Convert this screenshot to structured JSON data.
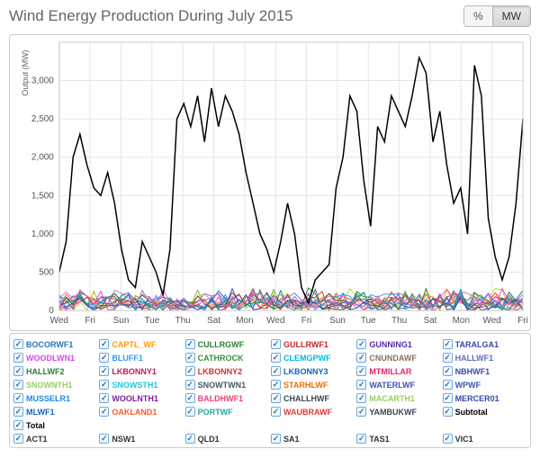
{
  "title": "Wind Energy Production During July 2015",
  "toggle": {
    "percent": "%",
    "mw": "MW",
    "active": "mw"
  },
  "chart": {
    "type": "line",
    "ylabel": "Output (MW)",
    "ylim": [
      0,
      3500
    ],
    "ytick_step": 500,
    "yticks": [
      0,
      500,
      1000,
      1500,
      2000,
      2500,
      3000
    ],
    "xticks": [
      "Wed",
      "Fri",
      "Sun",
      "Tue",
      "Thu",
      "Sat",
      "Mon",
      "Wed",
      "Fri",
      "Sun",
      "Tue",
      "Thu",
      "Sat",
      "Mon",
      "Wed",
      "Fri"
    ],
    "background_color": "#ffffff",
    "grid_color": "#e6e6e6",
    "total_color": "#000000",
    "total_series": [
      500,
      900,
      2000,
      2300,
      1900,
      1600,
      1500,
      1800,
      1400,
      800,
      400,
      300,
      900,
      700,
      500,
      200,
      800,
      2500,
      2700,
      2400,
      2800,
      2200,
      2900,
      2400,
      2800,
      2600,
      2300,
      1800,
      1400,
      1000,
      800,
      500,
      900,
      1400,
      1000,
      300,
      100,
      400,
      500,
      600,
      1600,
      2000,
      2800,
      2600,
      1700,
      1100,
      2400,
      2200,
      2800,
      2600,
      2400,
      2800,
      3300,
      3100,
      2200,
      2600,
      1900,
      1400,
      1600,
      1000,
      3200,
      2800,
      1200,
      700,
      400,
      700,
      1400,
      2500
    ],
    "mini_series_colors": [
      "#7cb342",
      "#cfcf2e",
      "#e377c2",
      "#1f77b4",
      "#ff9800",
      "#2e7d32",
      "#d946ef",
      "#e53935",
      "#3399ff",
      "#795548",
      "#9575cd",
      "#009688",
      "#3f51b5",
      "#f06292"
    ],
    "mini_max": 300
  },
  "legend": {
    "rows": [
      [
        {
          "label": "BOCORWF1",
          "color": "#1f77b4"
        },
        {
          "label": "CAPTL_WF",
          "color": "#ff9800"
        },
        {
          "label": "CULLRGWF",
          "color": "#2e7d32"
        },
        {
          "label": "GULLRWF1",
          "color": "#c62828"
        },
        {
          "label": "GUNNING1",
          "color": "#512da8"
        },
        {
          "label": "TARALGA1",
          "color": "#3949ab"
        }
      ],
      [
        {
          "label": "WOODLWN1",
          "color": "#d946ef"
        },
        {
          "label": "BLUFF1",
          "color": "#3399ff"
        },
        {
          "label": "CATHROCK",
          "color": "#388e3c"
        },
        {
          "label": "CLEMGPWF",
          "color": "#00bcd4"
        },
        {
          "label": "CNUNDAWF",
          "color": "#8d6e63"
        },
        {
          "label": "HALLWF1",
          "color": "#5c6bc0"
        }
      ],
      [
        {
          "label": "HALLWF2",
          "color": "#2e7d32"
        },
        {
          "label": "LKBONNY1",
          "color": "#c2185b"
        },
        {
          "label": "LKBONNY2",
          "color": "#d32f2f"
        },
        {
          "label": "LKBONNY3",
          "color": "#1565c0"
        },
        {
          "label": "MTMILLAR",
          "color": "#e91e63"
        },
        {
          "label": "NBHWF1",
          "color": "#3949ab"
        }
      ],
      [
        {
          "label": "SNOWNTH1",
          "color": "#9ccc65"
        },
        {
          "label": "SNOWSTH1",
          "color": "#26c6da"
        },
        {
          "label": "SNOWTWN1",
          "color": "#455a64"
        },
        {
          "label": "STARHLWF",
          "color": "#ef6c00"
        },
        {
          "label": "WATERLWF",
          "color": "#3f51b5"
        },
        {
          "label": "WPWF",
          "color": "#3f51b5"
        }
      ],
      [
        {
          "label": "MUSSELR1",
          "color": "#1e88e5"
        },
        {
          "label": "WOOLNTH1",
          "color": "#7b1fa2"
        },
        {
          "label": "BALDHWF1",
          "color": "#ec407a"
        },
        {
          "label": "CHALLHWF",
          "color": "#37474f"
        },
        {
          "label": "MACARTH1",
          "color": "#9ccc65"
        },
        {
          "label": "MERCER01",
          "color": "#3949ab"
        }
      ],
      [
        {
          "label": "MLWF1",
          "color": "#1565c0"
        },
        {
          "label": "OAKLAND1",
          "color": "#ff5722"
        },
        {
          "label": "PORTWF",
          "color": "#26a69a"
        },
        {
          "label": "WAUBRAWF",
          "color": "#e53935"
        },
        {
          "label": "YAMBUKWF",
          "color": "#37474f"
        },
        {
          "label": "Subtotal",
          "color": "#000000"
        }
      ]
    ],
    "total_row": [
      {
        "label": "Total",
        "color": "#000000"
      }
    ],
    "state_row": [
      {
        "label": "ACT1",
        "color": "#333"
      },
      {
        "label": "NSW1",
        "color": "#333"
      },
      {
        "label": "QLD1",
        "color": "#333"
      },
      {
        "label": "SA1",
        "color": "#333"
      },
      {
        "label": "TAS1",
        "color": "#333"
      },
      {
        "label": "VIC1",
        "color": "#333"
      }
    ]
  }
}
